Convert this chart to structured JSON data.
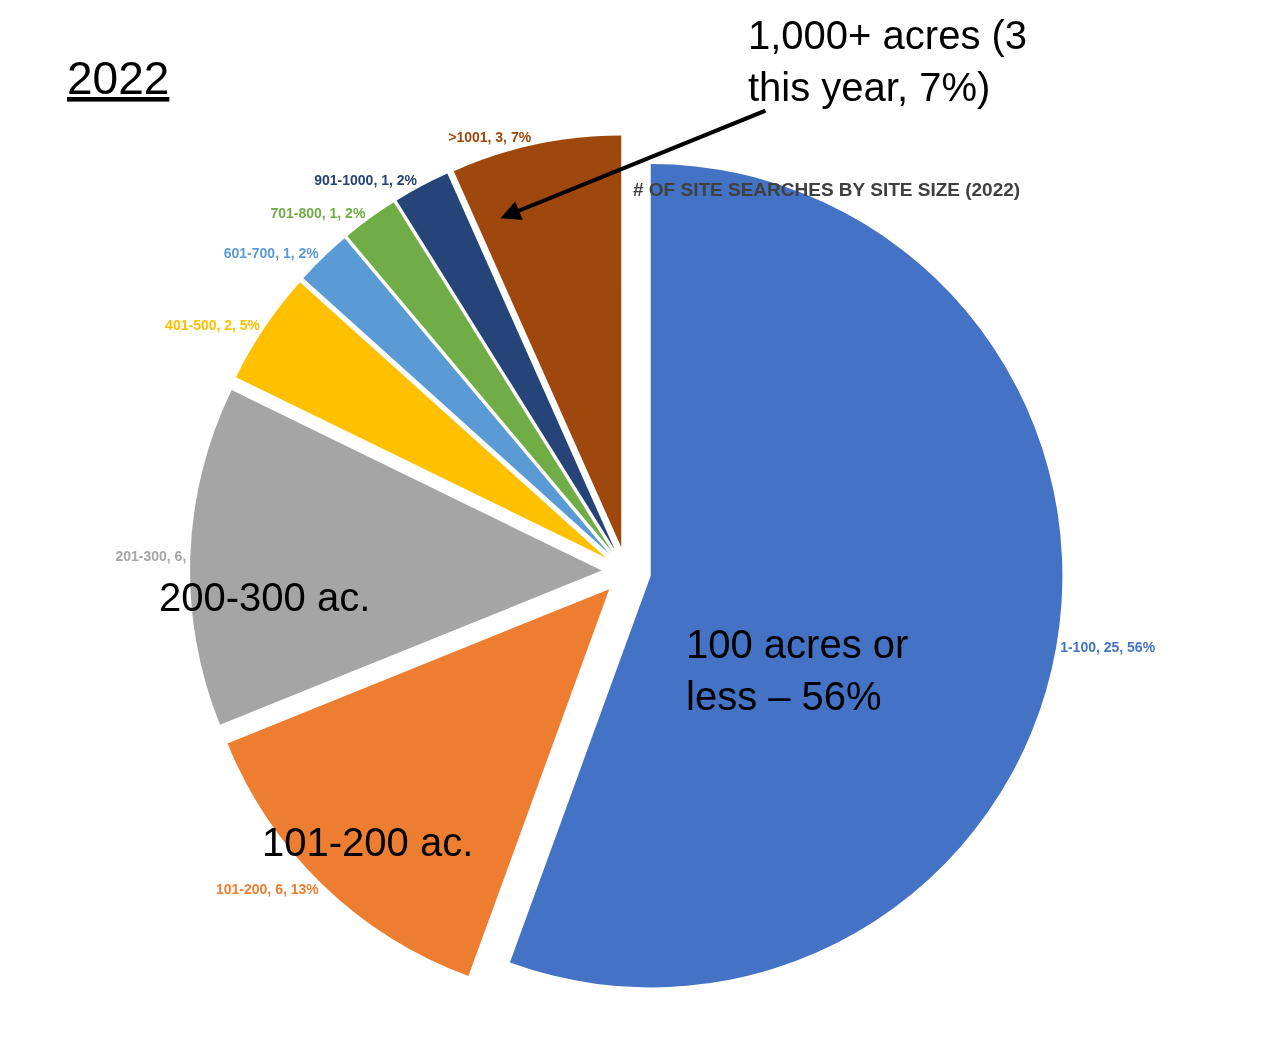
{
  "chart_data": {
    "type": "pie",
    "title": "# OF SITE SEARCHES BY SITE SIZE (2022)",
    "categories": [
      "1-100",
      "101-200",
      "201-300",
      "401-500",
      "601-700",
      "701-800",
      "901-1000",
      ">1001"
    ],
    "values": [
      25,
      6,
      6,
      2,
      1,
      1,
      1,
      3
    ],
    "colors": [
      "#4472c4",
      "#ed7d31",
      "#a5a5a5",
      "#ffc000",
      "#5b9bd5",
      "#70ad47",
      "#264478",
      "#9e480e"
    ],
    "value_labels": [
      "25, 56%",
      "6, 13%",
      "6,",
      "2, 5%",
      "1, 2%",
      "1, 2%",
      "1, 2%",
      "3, 7%"
    ],
    "annotations": [
      "2022",
      "1,000+ acres (3 this year, 7%)",
      "200-300 ac.",
      "101-200 ac.",
      "100 acres or less – 56%"
    ]
  }
}
